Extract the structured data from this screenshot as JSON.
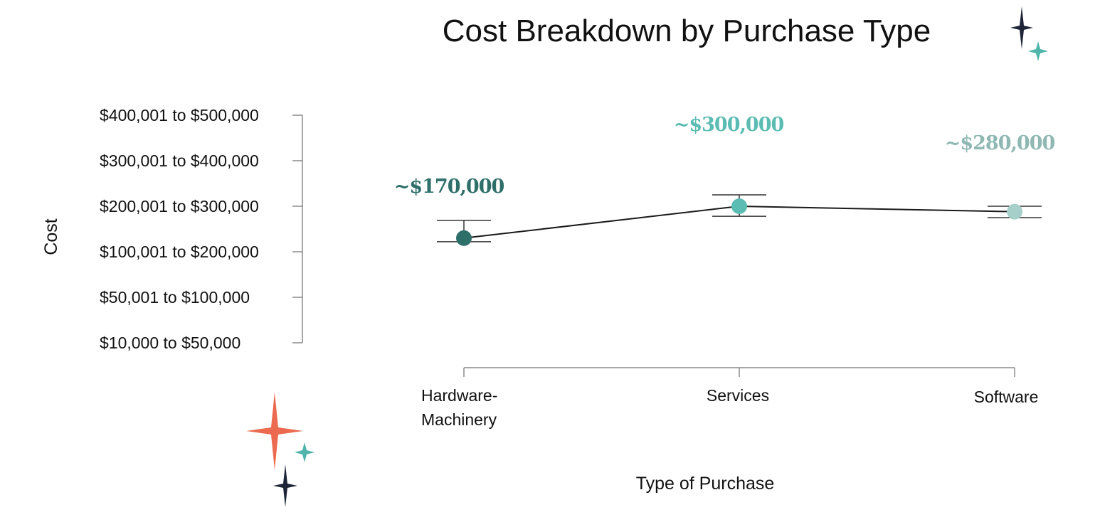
{
  "chart_data": {
    "type": "line",
    "title": "Cost Breakdown by Purchase Type",
    "xlabel": "Type of Purchase",
    "ylabel": "Cost",
    "y_categories": [
      "$10,000 to $50,000",
      "$50,001 to $100,000",
      "$100,001 to $200,000",
      "$200,001 to $300,000",
      "$300,001 to $400,000",
      "$400,001 to $500,000"
    ],
    "ylim": [
      0,
      5
    ],
    "categories": [
      [
        "Hardware-",
        "Machinery"
      ],
      [
        "Services"
      ],
      [
        "Software"
      ]
    ],
    "series": [
      {
        "values": [
          2.3,
          3.0,
          2.88
        ],
        "error_low": [
          2.22,
          2.78,
          2.75
        ],
        "error_high": [
          2.69,
          3.25,
          3.0
        ],
        "labels": [
          "~$170,000",
          "~$300,000",
          "~$280,000"
        ],
        "point_colors": [
          "#2f6f6a",
          "#5bbcb3",
          "#a6cfca"
        ],
        "label_colors": [
          "#2f6f6a",
          "#5bbcb3",
          "#8fb8b3"
        ]
      }
    ],
    "line_color": "#1a1a1a",
    "grid": false,
    "legend": "none"
  },
  "decorations": {
    "sparkle_colors": {
      "dark": "#1e2538",
      "teal": "#4fb5ab",
      "coral": "#ec6a50"
    }
  }
}
